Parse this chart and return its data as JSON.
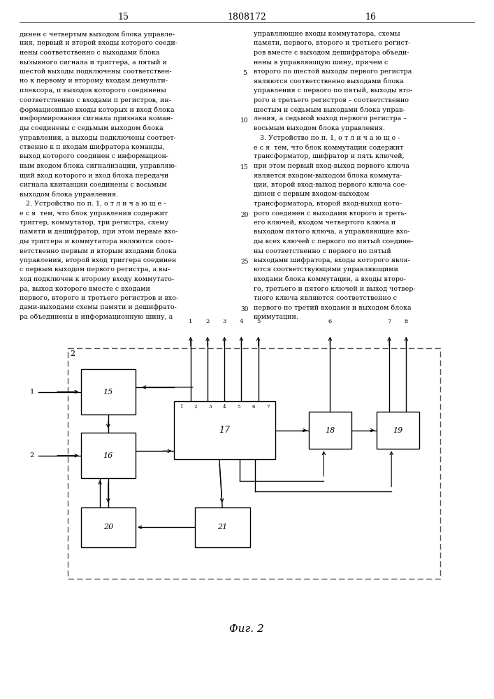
{
  "page_numbers": [
    "15",
    "1808172",
    "16"
  ],
  "left_text_lines": [
    "динен с четвертым выходом блока управле-",
    "ния, первый и второй входы которого соеди-",
    "нены соответственно с выходами блока",
    "вызывного сигнала и триггера, а пятый и",
    "шестой выходы подключены соответствен-",
    "но к первому и второму входам демульти-",
    "плексора, п выходов которого соединены",
    "соответственно с входами п регистров, ин-",
    "формационные входы которых и вход блока",
    "информирования сигнала признака коман-",
    "ды соединены с седьмым выходом блока",
    "управления, а выходы подключены соответ-",
    "ственно к п входам шифратора команды,",
    "выход которого соединен с информацион-",
    "ным входом блока сигнализации, управляю-",
    "щий вход которого и вход блока передачи",
    "сигнала квитанции соединены с восьмым",
    "выходом блока управления.",
    "   2. Устройство по п. 1, о т л и ч а ю щ е -",
    "е с я  тем, что блок управления содержит",
    "триггер, коммутатор, три регистра, схему",
    "памяти и дешифратор, при этом первые вхо-",
    "ды триггера и коммутатора являются соот-",
    "ветственно первым и вторым входами блока",
    "управления, второй вход триггера соединен",
    "с первым выходом первого регистра, а вы-",
    "ход подключен к второму входу коммутато-",
    "ра, выход которого вместе с входами",
    "первого, второго и третьего регистров и вхо-",
    "дами-выходами схемы памяти и дешифрато-",
    "ра объединены в информационную шину, а"
  ],
  "right_text_lines": [
    "управляющие входы коммутатора, схемы",
    "памяти, первого, второго и третьего регист-",
    "ров вместе с выходом дешифратора объеди-",
    "нены в управляющую шину, причем с",
    "второго по шестой выходы первого регистра",
    "являются соответственно выходами блока",
    "управления с первого по пятый, выходы вто-",
    "рого и третьего регистров – соответственно",
    "шестым и седьмым выходами блока управ-",
    "ления, а седьмой выход первого регистра –",
    "восьмым выходом блока управления.",
    "   3. Устройство по п. 1, о т л и ч а ю щ е -",
    "е с я  тем, что блок коммутации содержит",
    "трансформатор, шифратор и пять ключей,",
    "при этом первый вход-выход первого ключа",
    "является входом-выходом блока коммута-",
    "ции, второй вход-выход первого ключа сое-",
    "динен с первым входом-выходом",
    "трансформатора, второй вход-выход кото-",
    "рого соединен с выходами второго и треть-",
    "его ключей, входом четвертого ключа и",
    "выходом пятого ключа, а управляющие вхо-",
    "ды всех ключей с первого по пятый соедине-",
    "ны соответственно с первого по пятый",
    "выходами шифратора, входы которого явля-",
    "ются соответствующими управляющими",
    "входами блока коммутации, а входы второ-",
    "го, третьего и пятого ключей и выход четвер-",
    "тного ключа являются соответственно с",
    "первого по третий входами и выходом блока",
    "коммутации."
  ],
  "line_numbers": [
    "5",
    "10",
    "15",
    "20",
    "25",
    "30"
  ],
  "fig_caption": "Фиг. 2",
  "bg_color": "#ffffff",
  "text_color": "#000000"
}
